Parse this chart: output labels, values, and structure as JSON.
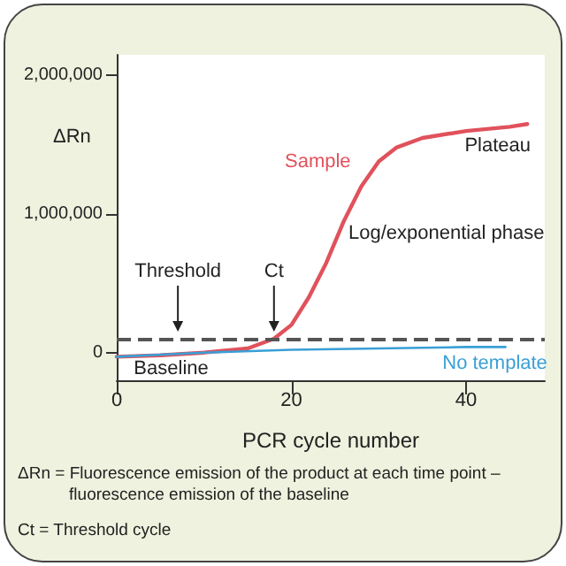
{
  "chart_data": {
    "type": "line",
    "xlabel": "PCR cycle number",
    "ylabel": "ΔRn",
    "xlim": [
      0,
      49
    ],
    "xticks": [
      0,
      20,
      40
    ],
    "ylim": [
      -200000,
      2150000
    ],
    "yticks": [
      0,
      {
        "value": 1000000,
        "label": "1,000,000"
      },
      {
        "value": 2000000,
        "label": "2,000,000"
      }
    ],
    "series": [
      {
        "name": "Sample",
        "color": "#e0525c",
        "x": [
          0,
          5,
          10,
          15,
          18,
          20,
          22,
          24,
          26,
          28,
          30,
          32,
          35,
          40,
          45,
          47
        ],
        "values": [
          -30000,
          -20000,
          0,
          30000,
          100000,
          200000,
          400000,
          650000,
          950000,
          1200000,
          1380000,
          1480000,
          1550000,
          1600000,
          1630000,
          1650000
        ]
      },
      {
        "name": "No template",
        "color": "#3a9fd6",
        "x": [
          0,
          10,
          20,
          30,
          40,
          44.5
        ],
        "values": [
          -30000,
          0,
          20000,
          30000,
          40000,
          40000
        ]
      }
    ],
    "ref_lines": [
      {
        "axis": "y",
        "value": 100000,
        "color": "#555555",
        "line_style": "dashed"
      }
    ],
    "annotations": [
      {
        "text": "Threshold",
        "x": 7,
        "y": 100000
      },
      {
        "text": "Ct",
        "x": 18,
        "y": 100000
      },
      "Plateau",
      "Log/exponential phase",
      "Baseline",
      "ΔRn = Fluorescence emission of the product at each time point –\n           fluorescence emission of the baseline",
      "Ct = Threshold cycle"
    ],
    "grid": false,
    "legend": false,
    "marker": "none",
    "line_style": "solid"
  }
}
